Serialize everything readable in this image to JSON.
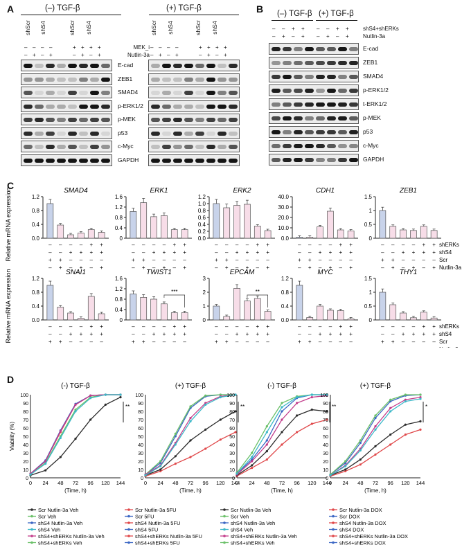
{
  "panels": {
    "A": {
      "letter": "A",
      "group_left": "(–) TGF-β",
      "group_right": "(+) TGF-β",
      "lane_labels": [
        "shScr",
        "shS4",
        "shScr",
        "shS4",
        "shScr",
        "shS4",
        "shScr",
        "shS4"
      ],
      "treat_rows": [
        {
          "label": "MEK_i",
          "left": [
            "–",
            "–",
            "–",
            "–",
            "+",
            "+",
            "+",
            "+"
          ],
          "right": [
            "–",
            "–",
            "–",
            "–",
            "+",
            "+",
            "+",
            "+"
          ]
        },
        {
          "label": "Nutlin-3a",
          "left": [
            "–",
            "+",
            "–",
            "+",
            "–",
            "+",
            "–",
            "+"
          ],
          "right": [
            "–",
            "+",
            "–",
            "+",
            "–",
            "+",
            "–",
            "+"
          ]
        }
      ],
      "blots": [
        "E-cad",
        "ZEB1",
        "SMAD4",
        "p-ERK1/2",
        "p-MEK",
        "p53",
        "c-Myc",
        "GAPDH"
      ]
    },
    "B": {
      "letter": "B",
      "group_left": "(–) TGF-β",
      "group_right": "(+) TGF-β",
      "treat_rows": [
        {
          "label": "shS4+shERKs",
          "signs": [
            "–",
            "–",
            "+",
            "+",
            "–",
            "–",
            "+",
            "+"
          ]
        },
        {
          "label": "Nutlin-3a",
          "signs": [
            "–",
            "+",
            "–",
            "+",
            "–",
            "+",
            "–",
            "+"
          ]
        }
      ],
      "blots": [
        "E-cad",
        "ZEB1",
        "SMAD4",
        "p-ERK1/2",
        "t-ERK1/2",
        "p-MEK",
        "p53",
        "c-Myc",
        "GAPDH"
      ]
    },
    "C": {
      "letter": "C",
      "ylabel": "Relative mRNA expression",
      "row_labels": [
        "shERKs",
        "shS4",
        "Scr",
        "Nutlin-3a"
      ],
      "sign_rows": [
        [
          "–",
          "–",
          "–",
          "–",
          "+",
          "+"
        ],
        [
          "–",
          "–",
          "+",
          "+",
          "+",
          "+"
        ],
        [
          "+",
          "+",
          "–",
          "–",
          "–",
          "–"
        ],
        [
          "–",
          "+",
          "–",
          "+",
          "–",
          "+"
        ]
      ]
    },
    "D": {
      "letter": "D",
      "xlabel": "(Time, h)",
      "ylabel": "Viability (%)",
      "legend_left": {
        "col1": [
          "Scr Nutlin-3a Veh",
          "Scr  Veh",
          "shS4 Nutlin-3a Veh",
          "shS4  Veh",
          "shS4+shERKs Nutlin-3a Veh",
          "shS4+shERKs  Veh"
        ],
        "col2": [
          "Scr Nutlin-3a 5FU",
          "Scr  5FU",
          "shS4 Nutlin-3a 5FU",
          "shS4  5FU",
          "shS4+shERKs Nutlin-3a 5FU",
          "shS4+shERKs  5FU"
        ]
      },
      "legend_right": {
        "col1": [
          "Scr Nutlin-3a Veh",
          "Scr  Veh",
          "shS4 Nutlin-3a Veh",
          "shS4  Veh",
          "shS4+shERKs Nutlin-3a Veh",
          "shS4+shERKs  Veh"
        ],
        "col2": [
          "Scr Nutlin-3a DOX",
          "Scr  DOX",
          "shS4 Nutlin-3a DOX",
          "shS4  DOX",
          "shS4+shERKs Nutlin-3a DOX",
          "shS4+shERKs  DOX"
        ]
      }
    }
  },
  "chart_data": [
    {
      "type": "bar",
      "title": "SMAD4",
      "ylim": [
        0,
        1.2
      ],
      "yticks": [
        "0.0",
        "0.4",
        "0.8",
        "1.2"
      ],
      "values": [
        1.0,
        0.38,
        0.1,
        0.15,
        0.25,
        0.17
      ],
      "sig": ""
    },
    {
      "type": "bar",
      "title": "ERK1",
      "ylim": [
        0,
        1.6
      ],
      "yticks": [
        "0",
        "0.4",
        "0.8",
        "1.2",
        "1.6"
      ],
      "values": [
        1.03,
        1.37,
        0.83,
        0.87,
        0.33,
        0.33
      ],
      "sig": ""
    },
    {
      "type": "bar",
      "title": "ERK2",
      "ylim": [
        0,
        1.2
      ],
      "yticks": [
        "0.0",
        "0.2",
        "0.4",
        "0.6",
        "0.8",
        "1.0",
        "1.2"
      ],
      "values": [
        1.0,
        0.88,
        0.95,
        0.98,
        0.35,
        0.22
      ],
      "sig": ""
    },
    {
      "type": "bar",
      "title": "CDH1",
      "ylim": [
        0,
        40
      ],
      "yticks": [
        "0.0",
        "10.0",
        "20.0",
        "30.0",
        "40.0"
      ],
      "values": [
        1,
        1,
        11,
        26,
        8,
        7
      ],
      "sig": ""
    },
    {
      "type": "bar",
      "title": "ZEB1",
      "ylim": [
        0,
        1.5
      ],
      "yticks": [
        "0",
        "0.5",
        "1",
        "1.5"
      ],
      "values": [
        1.0,
        0.43,
        0.3,
        0.28,
        0.43,
        0.28
      ],
      "sig": ""
    },
    {
      "type": "bar",
      "title": "SNAI1",
      "ylim": [
        0,
        1.2
      ],
      "yticks": [
        "0.0",
        "0.4",
        "0.8",
        "1.2"
      ],
      "values": [
        1.0,
        0.37,
        0.2,
        0.05,
        0.68,
        0.18
      ],
      "sig": ""
    },
    {
      "type": "bar",
      "title": "TWIST1",
      "ylim": [
        0,
        1.6
      ],
      "yticks": [
        "0",
        "0.4",
        "0.8",
        "1.2",
        "1.6"
      ],
      "values": [
        1.0,
        0.87,
        0.8,
        0.62,
        0.28,
        0.28
      ],
      "sig": "***"
    },
    {
      "type": "bar",
      "title": "EPCAM",
      "ylim": [
        0,
        3
      ],
      "yticks": [
        "0",
        "1",
        "2",
        "3"
      ],
      "values": [
        1.0,
        0.25,
        2.28,
        1.37,
        1.55,
        0.62
      ],
      "sig": "**"
    },
    {
      "type": "bar",
      "title": "MYC",
      "ylim": [
        0,
        1.2
      ],
      "yticks": [
        "0.0",
        "0.4",
        "0.8",
        "1.2"
      ],
      "values": [
        1.0,
        0.07,
        0.4,
        0.28,
        0.27,
        0.03
      ],
      "sig": ""
    },
    {
      "type": "bar",
      "title": "THY1",
      "ylim": [
        0,
        1.5
      ],
      "yticks": [
        "0",
        "0.5",
        "1",
        "1.5"
      ],
      "values": [
        1.0,
        0.55,
        0.25,
        0.08,
        0.28,
        0.07
      ],
      "sig": ""
    },
    {
      "type": "line",
      "title": "(-) TGF-β",
      "xticks": [
        "0",
        "24",
        "48",
        "72",
        "96",
        "120",
        "144"
      ],
      "yticks": [
        "0",
        "10",
        "20",
        "30",
        "40",
        "50",
        "60",
        "70",
        "80",
        "90",
        "100"
      ],
      "sig": "**",
      "series": [
        {
          "color": "#e0484a",
          "values": [
            5,
            20,
            55,
            88,
            99,
            100,
            100
          ]
        },
        {
          "color": "#3a66c4",
          "values": [
            5,
            21,
            57,
            89,
            99,
            100,
            100
          ]
        },
        {
          "color": "#2a2a2a",
          "values": [
            3,
            9,
            25,
            47,
            70,
            88,
            97
          ]
        },
        {
          "color": "#6ac068",
          "values": [
            4,
            18,
            50,
            82,
            97,
            100,
            100
          ]
        },
        {
          "color": "#c23b8a",
          "values": [
            5,
            20,
            56,
            88,
            99,
            100,
            100
          ]
        },
        {
          "color": "#3cb8c8",
          "values": [
            4,
            17,
            48,
            80,
            96,
            100,
            100
          ]
        }
      ]
    },
    {
      "type": "line",
      "title": "(+) TGF-β",
      "xticks": [
        "0",
        "24",
        "48",
        "72",
        "96",
        "120",
        "144"
      ],
      "yticks": [
        "0",
        "10",
        "20",
        "30",
        "40",
        "50",
        "60",
        "70",
        "80",
        "90",
        "100"
      ],
      "sig": "**",
      "series": [
        {
          "color": "#e0484a",
          "values": [
            2,
            8,
            17,
            25,
            35,
            46,
            55
          ]
        },
        {
          "color": "#3a66c4",
          "values": [
            4,
            18,
            50,
            84,
            98,
            100,
            100
          ]
        },
        {
          "color": "#2a2a2a",
          "values": [
            3,
            10,
            26,
            45,
            58,
            70,
            80
          ]
        },
        {
          "color": "#6ac068",
          "values": [
            4,
            20,
            53,
            86,
            99,
            100,
            100
          ]
        },
        {
          "color": "#c23b8a",
          "values": [
            4,
            15,
            42,
            72,
            90,
            98,
            100
          ]
        },
        {
          "color": "#3cb8c8",
          "values": [
            3,
            14,
            40,
            68,
            88,
            97,
            100
          ]
        }
      ]
    },
    {
      "type": "line",
      "title": "(-) TGF-β",
      "xticks": [
        "0",
        "24",
        "48",
        "72",
        "96",
        "120",
        "144"
      ],
      "yticks": [
        "0",
        "10",
        "20",
        "30",
        "40",
        "50",
        "60",
        "70",
        "80",
        "90",
        "100"
      ],
      "sig": "**",
      "series": [
        {
          "color": "#e0484a",
          "values": [
            2,
            12,
            22,
            40,
            55,
            65,
            70
          ]
        },
        {
          "color": "#3a66c4",
          "values": [
            5,
            22,
            45,
            80,
            96,
            100,
            100
          ]
        },
        {
          "color": "#2a2a2a",
          "values": [
            3,
            15,
            32,
            55,
            75,
            82,
            80
          ]
        },
        {
          "color": "#6ac068",
          "values": [
            6,
            30,
            62,
            90,
            98,
            100,
            100
          ]
        },
        {
          "color": "#c23b8a",
          "values": [
            4,
            20,
            40,
            70,
            90,
            97,
            99
          ]
        },
        {
          "color": "#3cb8c8",
          "values": [
            5,
            25,
            55,
            85,
            97,
            100,
            100
          ]
        }
      ]
    },
    {
      "type": "line",
      "title": "(+) TGF-β",
      "xticks": [
        "0",
        "24",
        "48",
        "72",
        "96",
        "120",
        "144"
      ],
      "yticks": [
        "0",
        "10",
        "20",
        "30",
        "40",
        "50",
        "60",
        "70",
        "80",
        "90",
        "100"
      ],
      "sig": "*",
      "series": [
        {
          "color": "#e0484a",
          "values": [
            2,
            8,
            16,
            28,
            40,
            52,
            58
          ]
        },
        {
          "color": "#3a66c4",
          "values": [
            4,
            18,
            42,
            72,
            92,
            99,
            100
          ]
        },
        {
          "color": "#2a2a2a",
          "values": [
            3,
            10,
            22,
            38,
            52,
            64,
            68
          ]
        },
        {
          "color": "#6ac068",
          "values": [
            4,
            20,
            45,
            75,
            94,
            100,
            100
          ]
        },
        {
          "color": "#c23b8a",
          "values": [
            3,
            15,
            35,
            62,
            84,
            94,
            97
          ]
        },
        {
          "color": "#3cb8c8",
          "values": [
            3,
            14,
            33,
            58,
            80,
            92,
            95
          ]
        }
      ]
    }
  ]
}
